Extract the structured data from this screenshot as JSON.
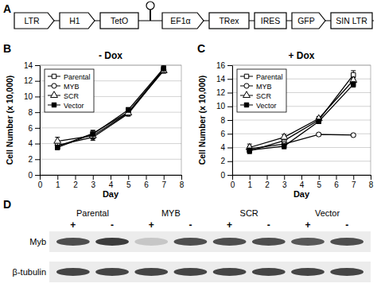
{
  "panels": [
    "A",
    "B",
    "C",
    "D"
  ],
  "diagram": {
    "elements": [
      {
        "label": "LTR",
        "shape": "arrow"
      },
      {
        "label": "H1",
        "shape": "arrow"
      },
      {
        "label": "TetO",
        "shape": "box"
      },
      {
        "shape": "hairpin"
      },
      {
        "label": "EF1α",
        "shape": "arrow"
      },
      {
        "label": "TRex",
        "shape": "box"
      },
      {
        "label": "IRES",
        "shape": "box"
      },
      {
        "label": "GFP",
        "shape": "arrow"
      },
      {
        "label": "SIN LTR",
        "shape": "box"
      }
    ]
  },
  "chart_data": [
    {
      "type": "line",
      "title": "- Dox",
      "x_label": "Day",
      "y_label": "Cell Number (x 10,000)",
      "x": [
        1,
        3,
        5,
        7
      ],
      "xlim": [
        0,
        8
      ],
      "xticks": [
        0,
        1,
        2,
        3,
        4,
        5,
        6,
        7,
        8
      ],
      "ylim": [
        0,
        14
      ],
      "yticks": [
        0,
        2,
        4,
        6,
        8,
        10,
        12,
        14
      ],
      "grid": true,
      "legend": "top-left",
      "series": [
        {
          "name": "Parental",
          "color": "#000000",
          "marker": "square-open",
          "values": [
            3.6,
            5.3,
            8.0,
            13.5
          ],
          "errors": [
            0.3,
            0.3,
            0.3,
            0.4
          ]
        },
        {
          "name": "MYB",
          "color": "#000000",
          "marker": "circle-open",
          "values": [
            3.8,
            4.8,
            7.8,
            13.4
          ],
          "errors": [
            0.4,
            0.4,
            0.3,
            0.4
          ]
        },
        {
          "name": "SCR",
          "color": "#000000",
          "marker": "triangle-open",
          "values": [
            4.3,
            5.0,
            7.9,
            13.3
          ],
          "errors": [
            0.5,
            0.4,
            0.3,
            0.3
          ]
        },
        {
          "name": "Vector",
          "color": "#000000",
          "marker": "square",
          "values": [
            3.5,
            5.2,
            8.3,
            13.6
          ],
          "errors": [
            0.3,
            0.5,
            0.3,
            0.4
          ]
        }
      ]
    },
    {
      "type": "line",
      "title": "+ Dox",
      "x_label": "Day",
      "y_label": "Cell Number (x 10,000)",
      "x": [
        1,
        3,
        5,
        7
      ],
      "xlim": [
        0,
        8
      ],
      "xticks": [
        0,
        1,
        2,
        3,
        4,
        5,
        6,
        7,
        8
      ],
      "ylim": [
        0,
        16
      ],
      "yticks": [
        0,
        2,
        4,
        6,
        8,
        10,
        12,
        14,
        16
      ],
      "grid": true,
      "legend": "top-left",
      "series": [
        {
          "name": "Parental",
          "color": "#000000",
          "marker": "square-open",
          "values": [
            3.5,
            5.0,
            8.0,
            14.6
          ],
          "errors": [
            0.4,
            0.4,
            0.3,
            0.6
          ]
        },
        {
          "name": "MYB",
          "color": "#000000",
          "marker": "circle-open",
          "values": [
            3.8,
            4.5,
            5.9,
            5.8
          ],
          "errors": [
            0.4,
            0.3,
            0.2,
            0.2
          ]
        },
        {
          "name": "SCR",
          "color": "#000000",
          "marker": "triangle-open",
          "values": [
            4.0,
            5.5,
            8.2,
            13.8
          ],
          "errors": [
            0.5,
            0.4,
            0.3,
            0.4
          ]
        },
        {
          "name": "Vector",
          "color": "#000000",
          "marker": "square",
          "values": [
            3.6,
            4.2,
            7.8,
            13.2
          ],
          "errors": [
            0.3,
            0.4,
            0.3,
            0.4
          ]
        }
      ]
    }
  ],
  "blot": {
    "groups": [
      "Parental",
      "MYB",
      "SCR",
      "Vector"
    ],
    "lanes": [
      "+",
      "-",
      "+",
      "-",
      "+",
      "-",
      "+",
      "-"
    ],
    "rows": [
      {
        "label": "Myb",
        "intensity": [
          0.85,
          0.95,
          0.2,
          0.85,
          0.85,
          0.85,
          0.8,
          0.85
        ]
      },
      {
        "label": "β-tubulin",
        "intensity": [
          0.9,
          0.9,
          0.9,
          0.9,
          0.9,
          0.9,
          0.9,
          0.9
        ]
      }
    ]
  }
}
